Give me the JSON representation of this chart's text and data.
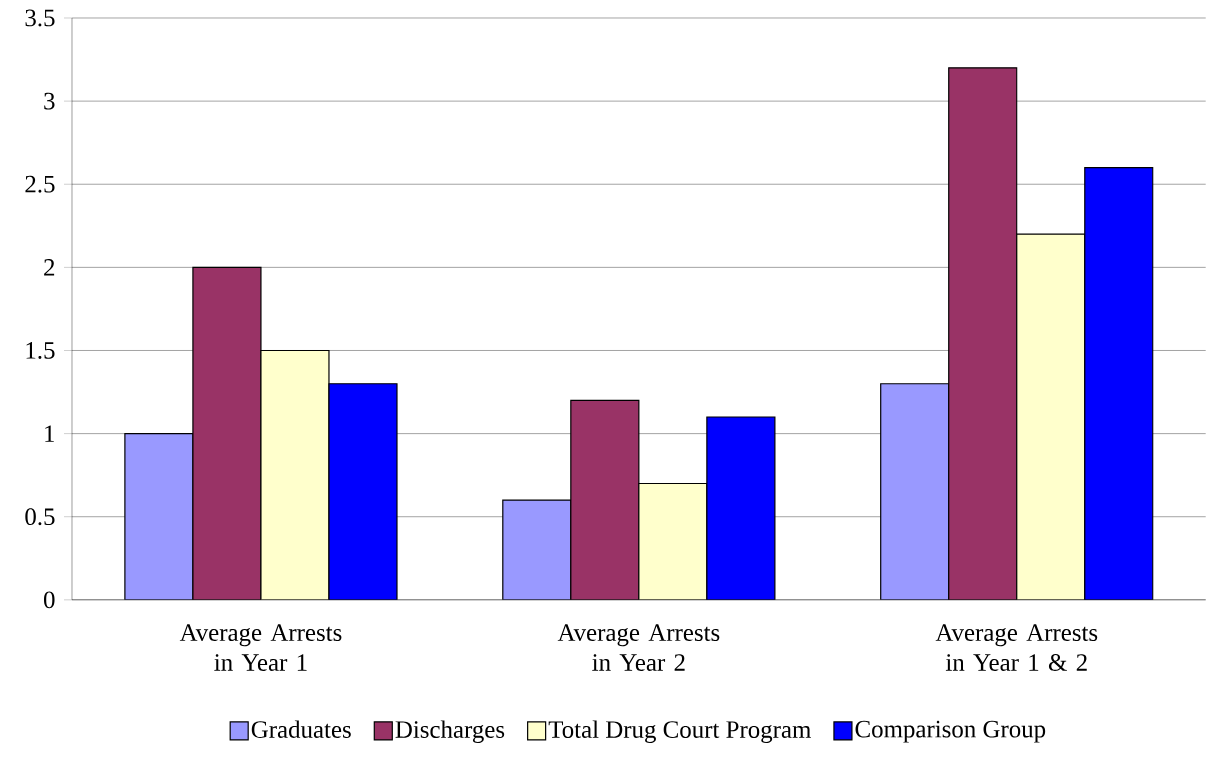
{
  "chart_data": {
    "type": "bar",
    "categories": [
      "Average Arrests in Year 1",
      "Average Arrests in Year 2",
      "Average Arrests in Year 1 & 2"
    ],
    "series": [
      {
        "name": "Graduates",
        "color": "#9999ff",
        "values": [
          1,
          0.6,
          1.3
        ]
      },
      {
        "name": "Discharges",
        "color": "#993366",
        "values": [
          2,
          1.2,
          3.2
        ]
      },
      {
        "name": "Total Drug Court Program",
        "color": "#ffffcc",
        "values": [
          1.5,
          0.7,
          2.2
        ]
      },
      {
        "name": "Comparison Group",
        "color": "#0000ff",
        "values": [
          1.3,
          1.1,
          2.6
        ]
      }
    ],
    "ylim": [
      0,
      3.5
    ],
    "yticks": [
      0,
      0.5,
      1,
      1.5,
      2,
      2.5,
      3,
      3.5
    ],
    "grid": "y",
    "legend": "bottom"
  }
}
